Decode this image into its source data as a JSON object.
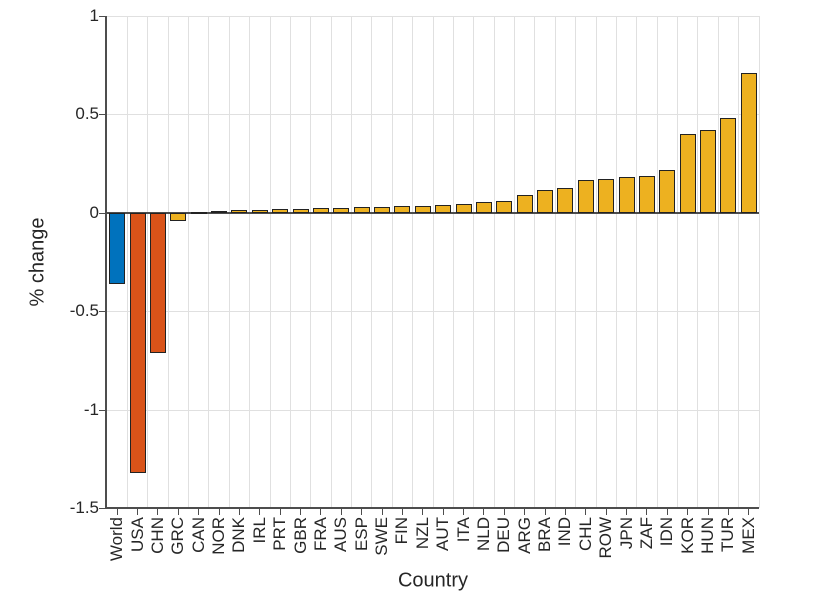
{
  "chart_data": {
    "type": "bar",
    "title": "",
    "xlabel": "Country",
    "ylabel": "% change",
    "ylim": [
      -1.5,
      1
    ],
    "yticks": [
      1,
      0.5,
      0,
      -0.5,
      -1,
      -1.5
    ],
    "ytick_labels": [
      "1",
      "0.5",
      "0",
      "-0.5",
      "-1",
      "-1.5"
    ],
    "grid": true,
    "legend": "none",
    "categories": [
      "World",
      "USA",
      "CHN",
      "GRC",
      "CAN",
      "NOR",
      "DNK",
      "IRL",
      "PRT",
      "GBR",
      "FRA",
      "AUS",
      "ESP",
      "SWE",
      "FIN",
      "NZL",
      "AUT",
      "ITA",
      "NLD",
      "DEU",
      "ARG",
      "BRA",
      "IND",
      "CHL",
      "ROW",
      "JPN",
      "ZAF",
      "IDN",
      "KOR",
      "HUN",
      "TUR",
      "MEX"
    ],
    "values": [
      -0.36,
      -1.32,
      -0.71,
      -0.04,
      0.005,
      0.01,
      0.012,
      0.015,
      0.017,
      0.02,
      0.022,
      0.025,
      0.028,
      0.03,
      0.033,
      0.035,
      0.04,
      0.045,
      0.055,
      0.06,
      0.09,
      0.115,
      0.125,
      0.165,
      0.17,
      0.18,
      0.185,
      0.22,
      0.4,
      0.42,
      0.48,
      0.71
    ],
    "bar_colors": [
      "#0072BD",
      "#D95319",
      "#D95319",
      "#EDB120",
      "#EDB120",
      "#EDB120",
      "#EDB120",
      "#EDB120",
      "#EDB120",
      "#EDB120",
      "#EDB120",
      "#EDB120",
      "#EDB120",
      "#EDB120",
      "#EDB120",
      "#EDB120",
      "#EDB120",
      "#EDB120",
      "#EDB120",
      "#EDB120",
      "#EDB120",
      "#EDB120",
      "#EDB120",
      "#EDB120",
      "#EDB120",
      "#EDB120",
      "#EDB120",
      "#EDB120",
      "#EDB120",
      "#EDB120",
      "#EDB120",
      "#EDB120"
    ],
    "colors": {
      "world_bar": "#0072BD",
      "decline_bar": "#D95319",
      "gain_bar": "#EDB120",
      "bar_edge": "#222222",
      "axis": "#4d4d4d",
      "grid": "#e0e0e0",
      "text": "#262626",
      "background": "#ffffff"
    }
  }
}
